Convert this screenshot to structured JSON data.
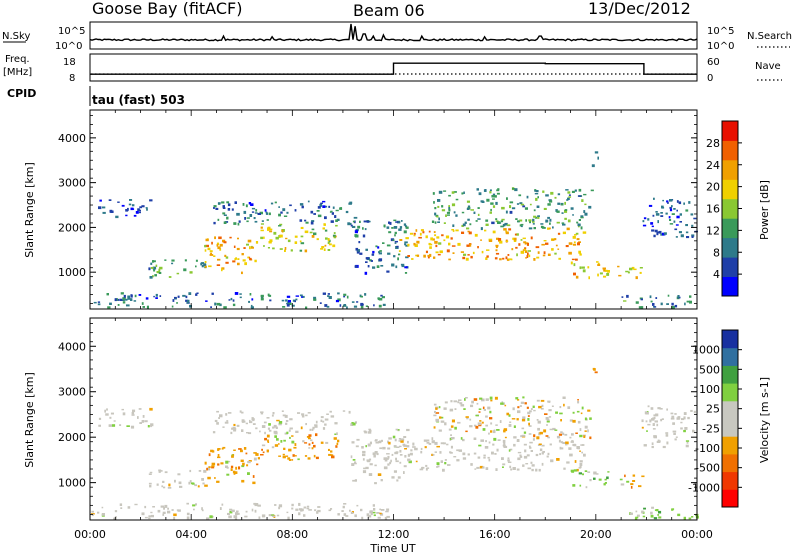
{
  "header": {
    "station": "Goose Bay (fitACF)",
    "beam": "Beam 06",
    "date": "13/Dec/2012"
  },
  "top_panel": {
    "left_label": "N.Sky",
    "right_label": "N.Search",
    "left_ticks": [
      "10^5",
      "10^0"
    ],
    "right_ticks": [
      "10^5",
      "10^0"
    ]
  },
  "freq_panel": {
    "left_label_1": "Freq.",
    "left_label_2": "[MHz]",
    "right_label": "Nave",
    "left_ticks": [
      "18",
      "8"
    ],
    "right_ticks": [
      "60",
      "0"
    ]
  },
  "cpid": {
    "label": "CPID",
    "value": "tau (fast) 503"
  },
  "colors": {
    "power_scale": [
      "#0000ff",
      "#1f3fa8",
      "#2e7a8a",
      "#3a9a5a",
      "#8ac832",
      "#f0d000",
      "#f0a000",
      "#f06000",
      "#e81000"
    ],
    "velocity_scale": [
      "#ff0000",
      "#f03800",
      "#f07000",
      "#f0a000",
      "#c8c8c0",
      "#c8c8c0",
      "#80d040",
      "#40a040",
      "#3070a0",
      "#1830a0"
    ],
    "scatter_gray": "#c8c6be"
  },
  "chart_data": [
    {
      "type": "heatmap",
      "name": "power",
      "title": "",
      "xlabel": "Time UT",
      "ylabel": "Slant Range [km]",
      "x_ticks": [
        "00:00",
        "04:00",
        "08:00",
        "12:00",
        "16:00",
        "20:00",
        "00:00"
      ],
      "y_ticks": [
        "1000",
        "2000",
        "3000",
        "4000"
      ],
      "ylim": [
        200,
        4600
      ],
      "xlim_hours": [
        0,
        24
      ],
      "colorbar": {
        "label": "Power [dB]",
        "ticks": [
          "28",
          "24",
          "20",
          "16",
          "12",
          "8",
          "4"
        ],
        "range": [
          0,
          32
        ]
      },
      "echo_regions": [
        {
          "t0": 0.0,
          "t1": 11.9,
          "r0": 230,
          "r1": 560,
          "level": 8
        },
        {
          "t0": 0.3,
          "t1": 2.4,
          "r0": 2250,
          "r1": 2650,
          "level": 6
        },
        {
          "t0": 2.3,
          "t1": 4.6,
          "r0": 900,
          "r1": 1300,
          "level": 12
        },
        {
          "t0": 4.5,
          "t1": 6.6,
          "r0": 1000,
          "r1": 1800,
          "level": 22
        },
        {
          "t0": 6.6,
          "t1": 9.8,
          "r0": 1500,
          "r1": 2100,
          "level": 18
        },
        {
          "t0": 4.8,
          "t1": 10.5,
          "r0": 2100,
          "r1": 2600,
          "level": 8
        },
        {
          "t0": 10.3,
          "t1": 12.5,
          "r0": 1000,
          "r1": 2200,
          "level": 8
        },
        {
          "t0": 12.2,
          "t1": 19.5,
          "r0": 1300,
          "r1": 2000,
          "level": 22
        },
        {
          "t0": 13.5,
          "t1": 19.8,
          "r0": 2000,
          "r1": 2900,
          "level": 12
        },
        {
          "t0": 19.0,
          "t1": 20.5,
          "r0": 900,
          "r1": 1300,
          "level": 20
        },
        {
          "t0": 20.8,
          "t1": 21.8,
          "r0": 900,
          "r1": 1200,
          "level": 18
        },
        {
          "t0": 21.8,
          "t1": 23.9,
          "r0": 1800,
          "r1": 2700,
          "level": 6
        },
        {
          "t0": 19.8,
          "t1": 20.1,
          "r0": 3400,
          "r1": 3700,
          "level": 12
        },
        {
          "t0": 21.0,
          "t1": 24.0,
          "r0": 230,
          "r1": 500,
          "level": 10
        }
      ]
    },
    {
      "type": "heatmap",
      "name": "velocity",
      "title": "",
      "xlabel": "Time UT",
      "ylabel": "Slant Range [km]",
      "x_ticks": [
        "00:00",
        "04:00",
        "08:00",
        "12:00",
        "16:00",
        "20:00",
        "00:00"
      ],
      "y_ticks": [
        "1000",
        "2000",
        "3000",
        "4000"
      ],
      "ylim": [
        200,
        4600
      ],
      "xlim_hours": [
        0,
        24
      ],
      "colorbar": {
        "label": "Velocity [m s-1]",
        "ticks": [
          "1000",
          "500",
          "100",
          "25",
          "-25",
          "-100",
          "-500",
          "-1000"
        ]
      },
      "echo_regions": [
        {
          "t0": 0.0,
          "t1": 11.9,
          "r0": 230,
          "r1": 560,
          "kind": "ground"
        },
        {
          "t0": 0.3,
          "t1": 2.4,
          "r0": 2250,
          "r1": 2650,
          "kind": "ground"
        },
        {
          "t0": 2.3,
          "t1": 4.6,
          "r0": 900,
          "r1": 1300,
          "kind": "ground"
        },
        {
          "t0": 4.5,
          "t1": 6.6,
          "r0": 1000,
          "r1": 1800,
          "kind": "neg"
        },
        {
          "t0": 6.6,
          "t1": 9.8,
          "r0": 1500,
          "r1": 2100,
          "kind": "neg"
        },
        {
          "t0": 4.8,
          "t1": 10.5,
          "r0": 2100,
          "r1": 2600,
          "kind": "ground"
        },
        {
          "t0": 10.3,
          "t1": 12.5,
          "r0": 1000,
          "r1": 2200,
          "kind": "ground"
        },
        {
          "t0": 12.2,
          "t1": 19.5,
          "r0": 1300,
          "r1": 2000,
          "kind": "ground"
        },
        {
          "t0": 13.5,
          "t1": 19.8,
          "r0": 2000,
          "r1": 2900,
          "kind": "mixed"
        },
        {
          "t0": 19.0,
          "t1": 20.5,
          "r0": 900,
          "r1": 1300,
          "kind": "pos"
        },
        {
          "t0": 20.8,
          "t1": 21.8,
          "r0": 900,
          "r1": 1200,
          "kind": "neg"
        },
        {
          "t0": 21.8,
          "t1": 23.9,
          "r0": 1800,
          "r1": 2700,
          "kind": "ground"
        },
        {
          "t0": 19.8,
          "t1": 20.1,
          "r0": 3400,
          "r1": 3700,
          "kind": "neg"
        },
        {
          "t0": 21.0,
          "t1": 24.0,
          "r0": 230,
          "r1": 500,
          "kind": "pos"
        }
      ]
    }
  ],
  "freq_series": {
    "freq_mhz_segments": [
      {
        "t0": 0.0,
        "t1": 12.0,
        "value": 10.4
      },
      {
        "t0": 12.0,
        "t1": 18.0,
        "value": 15.0
      },
      {
        "t0": 18.0,
        "t1": 21.9,
        "value": 14.8
      },
      {
        "t0": 21.9,
        "t1": 24.0,
        "value": 10.4
      }
    ],
    "nave_value": 0
  },
  "nsky_series": {
    "baseline": 0.28,
    "spikes": [
      {
        "t": 10.35,
        "value": 1.0
      },
      {
        "t": 10.5,
        "value": 0.9
      },
      {
        "t": 10.85,
        "value": 0.55
      },
      {
        "t": 11.2,
        "value": 0.45
      },
      {
        "t": 11.6,
        "value": 0.5
      },
      {
        "t": 5.3,
        "value": 0.45
      },
      {
        "t": 7.2,
        "value": 0.42
      },
      {
        "t": 13.1,
        "value": 0.45
      },
      {
        "t": 15.6,
        "value": 0.42
      },
      {
        "t": 17.8,
        "value": 0.45
      }
    ]
  }
}
